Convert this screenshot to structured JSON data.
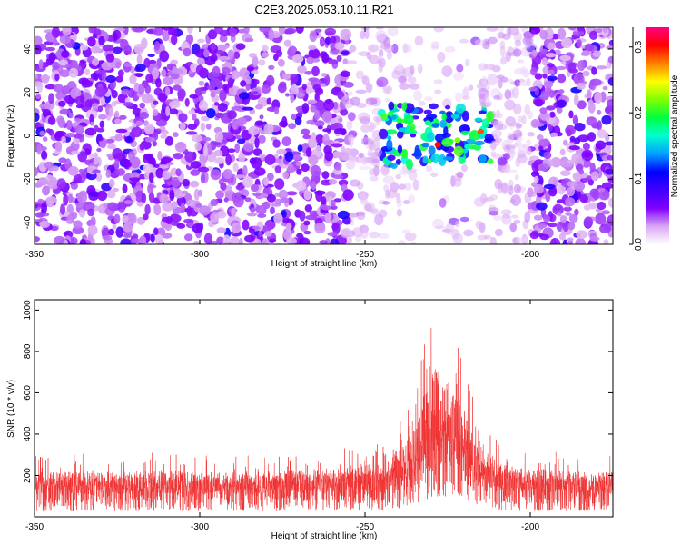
{
  "figure": {
    "title": "C2E3.2025.053.10.11.R21"
  },
  "chart_data": [
    {
      "type": "heatmap",
      "xlabel": "Height of straight line (km)",
      "ylabel": "Frequency (Hz)",
      "xlim": [
        -350,
        -175
      ],
      "ylim": [
        -50,
        50
      ],
      "xticks": [
        "-350",
        "-300",
        "-250",
        "-200"
      ],
      "yticks": [
        "-40",
        "-20",
        "0",
        "20",
        "40"
      ],
      "colorbar": {
        "label": "Normalized spectral amplitude",
        "range": [
          0,
          0.33
        ],
        "ticks": [
          "0.0",
          "0.1",
          "0.2",
          "0.3"
        ],
        "colormap": [
          "#ffffff",
          "#d9a6f2",
          "#8000ff",
          "#4000ff",
          "#0000ff",
          "#00a0ff",
          "#00ffd0",
          "#00ff40",
          "#80ff00",
          "#ffff00",
          "#ff8000",
          "#ff0000",
          "#ff0080"
        ]
      },
      "features": {
        "signal_region_km": [
          -245,
          -212
        ],
        "signal_frequency_hz": [
          -10,
          10
        ],
        "peak_amplitude": 0.3,
        "low_amplitude_band_km": [
          -255,
          -200
        ],
        "background_amplitude": 0.03
      }
    },
    {
      "type": "line",
      "xlabel": "Height of straight line (km)",
      "ylabel": "SNR (10 * v/v)",
      "xlim": [
        -350,
        -175
      ],
      "ylim": [
        0,
        1050
      ],
      "xticks": [
        "-350",
        "-300",
        "-250",
        "-200"
      ],
      "yticks": [
        "200",
        "400",
        "600",
        "800",
        "1000"
      ],
      "line_color": "#f03030",
      "envelope": {
        "x": [
          -350,
          -330,
          -310,
          -290,
          -270,
          -260,
          -250,
          -245,
          -240,
          -235,
          -232,
          -230,
          -228,
          -226,
          -224,
          -222,
          -220,
          -218,
          -216,
          -214,
          -212,
          -210,
          -205,
          -200,
          -190,
          -180,
          -175
        ],
        "baseline": [
          110,
          110,
          110,
          110,
          115,
          120,
          125,
          130,
          160,
          200,
          250,
          300,
          320,
          300,
          280,
          260,
          240,
          220,
          200,
          170,
          150,
          130,
          120,
          115,
          110,
          110,
          110
        ],
        "max": [
          300,
          310,
          320,
          300,
          320,
          330,
          350,
          380,
          470,
          600,
          880,
          1050,
          1040,
          920,
          900,
          870,
          750,
          700,
          650,
          480,
          420,
          380,
          340,
          330,
          320,
          300,
          310
        ],
        "min": [
          5,
          5,
          5,
          5,
          5,
          5,
          5,
          5,
          10,
          20,
          30,
          20,
          10,
          20,
          20,
          10,
          10,
          15,
          20,
          10,
          5,
          5,
          5,
          5,
          5,
          5,
          5
        ]
      }
    }
  ]
}
